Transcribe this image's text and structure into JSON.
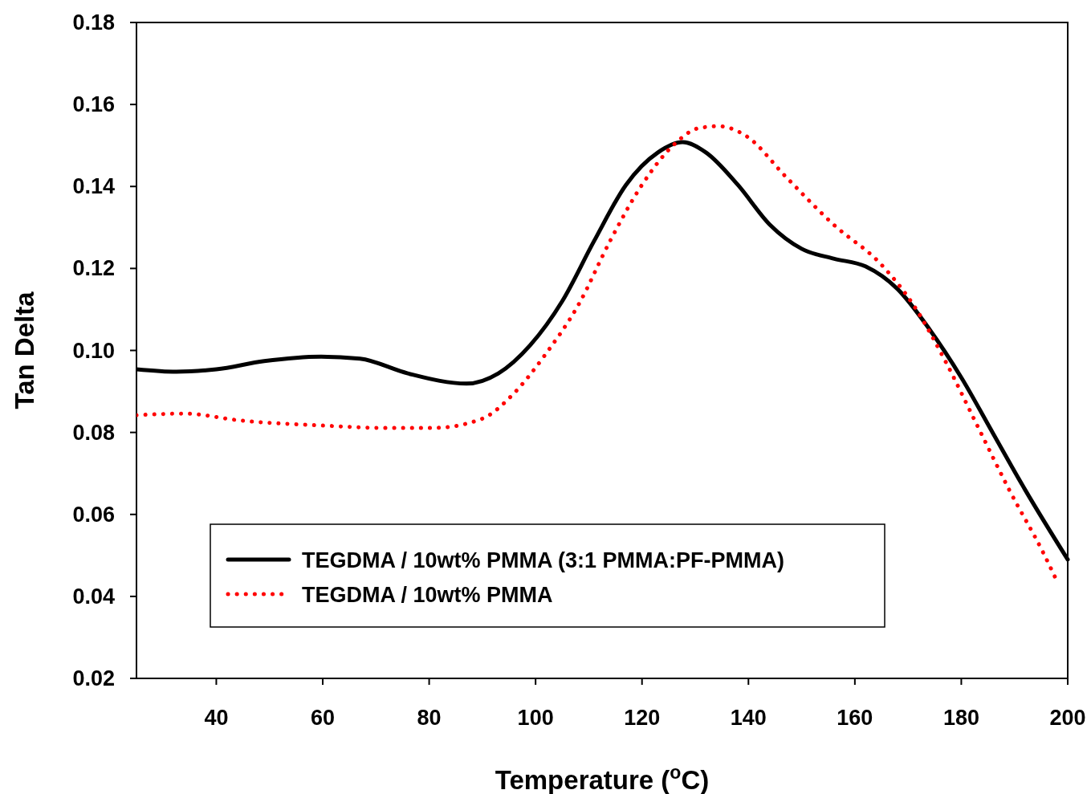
{
  "chart_data": {
    "type": "line",
    "xlabel": "Temperature ($^{o}$C)",
    "ylabel": "Tan Delta",
    "xlim": [
      25,
      200
    ],
    "xticks": [
      40,
      60,
      80,
      100,
      120,
      140,
      160,
      180,
      200
    ],
    "ylim": [
      0.02,
      0.18
    ],
    "yticks": [
      {
        "value": 0.02,
        "label": "0.02"
      },
      {
        "value": 0.04,
        "label": "0.04"
      },
      {
        "value": 0.06,
        "label": "0.06"
      },
      {
        "value": 0.08,
        "label": "0.08"
      },
      {
        "value": 0.1,
        "label": "0.10"
      },
      {
        "value": 0.12,
        "label": "0.12"
      },
      {
        "value": 0.14,
        "label": "0.14"
      },
      {
        "value": 0.16,
        "label": "0.16"
      },
      {
        "value": 0.18,
        "label": "0.18"
      }
    ],
    "grid": false,
    "legend": "bottom left",
    "series": [
      {
        "name": "TEGDMA / 10wt% PMMA (3:1 PMMA:PF-PMMA)",
        "color": "#000000",
        "line_style": "solid",
        "x": [
          25,
          32.5,
          40,
          49,
          59.7,
          67,
          76,
          87,
          93,
          99,
          105,
          111,
          117,
          123,
          127.6,
          132,
          138,
          144,
          150,
          156,
          162,
          168,
          174,
          180,
          186,
          192,
          200
        ],
        "values": [
          0.0954,
          0.0948,
          0.0954,
          0.0974,
          0.0985,
          0.098,
          0.0944,
          0.0919,
          0.0944,
          0.1013,
          0.112,
          0.1267,
          0.1404,
          0.1483,
          0.1508,
          0.1483,
          0.1404,
          0.1307,
          0.1248,
          0.1224,
          0.1205,
          0.115,
          0.1052,
          0.0934,
          0.0797,
          0.066,
          0.049
        ]
      },
      {
        "name": "TEGDMA / 10wt% PMMA",
        "color": "#ff0000",
        "line_style": "dotted",
        "x": [
          25,
          34,
          44.6,
          59.7,
          71.8,
          80.8,
          89.9,
          95.9,
          102,
          108,
          114,
          120,
          126,
          130.6,
          134.4,
          139.7,
          147,
          156,
          165,
          171,
          177,
          183,
          189,
          195.5,
          197.7
        ],
        "values": [
          0.0842,
          0.0846,
          0.0829,
          0.0817,
          0.0811,
          0.0811,
          0.0833,
          0.0895,
          0.0993,
          0.111,
          0.1267,
          0.1404,
          0.1502,
          0.1542,
          0.1547,
          0.1522,
          0.1424,
          0.1307,
          0.1209,
          0.1111,
          0.0974,
          0.0817,
          0.066,
          0.0504,
          0.0445
        ]
      }
    ]
  }
}
